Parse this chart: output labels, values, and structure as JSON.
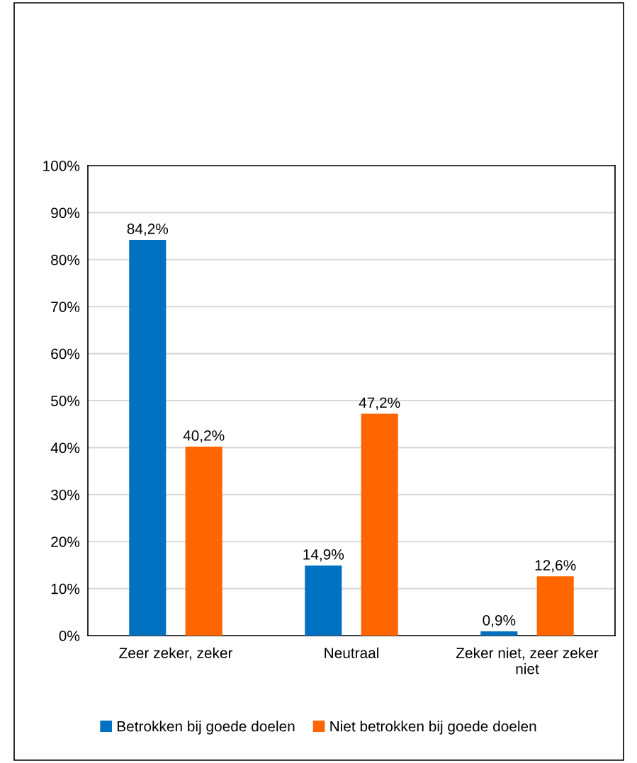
{
  "chart_data": {
    "type": "bar",
    "categories": [
      "Zeer zeker, zeker",
      "Neutraal",
      "Zeker niet, zeer zeker\nniet"
    ],
    "series": [
      {
        "name": "Betrokken bij goede doelen",
        "color": "#0070c0",
        "values": [
          84.2,
          14.9,
          0.9
        ],
        "value_labels": [
          "84,2%",
          "14,9%",
          "0,9%"
        ]
      },
      {
        "name": "Niet betrokken bij goede doelen",
        "color": "#ff6600",
        "values": [
          40.2,
          47.2,
          12.6
        ],
        "value_labels": [
          "40,2%",
          "47,2%",
          "12,6%"
        ]
      }
    ],
    "ylim": [
      0,
      100
    ],
    "yticks": [
      {
        "value": 0,
        "label": "0%"
      },
      {
        "value": 10,
        "label": "10%"
      },
      {
        "value": 20,
        "label": "20%"
      },
      {
        "value": 30,
        "label": "30%"
      },
      {
        "value": 40,
        "label": "40%"
      },
      {
        "value": 50,
        "label": "50%"
      },
      {
        "value": 60,
        "label": "60%"
      },
      {
        "value": 70,
        "label": "70%"
      },
      {
        "value": 80,
        "label": "80%"
      },
      {
        "value": 90,
        "label": "90%"
      },
      {
        "value": 100,
        "label": "100%"
      }
    ],
    "grid": "y",
    "legend": "bottom"
  }
}
